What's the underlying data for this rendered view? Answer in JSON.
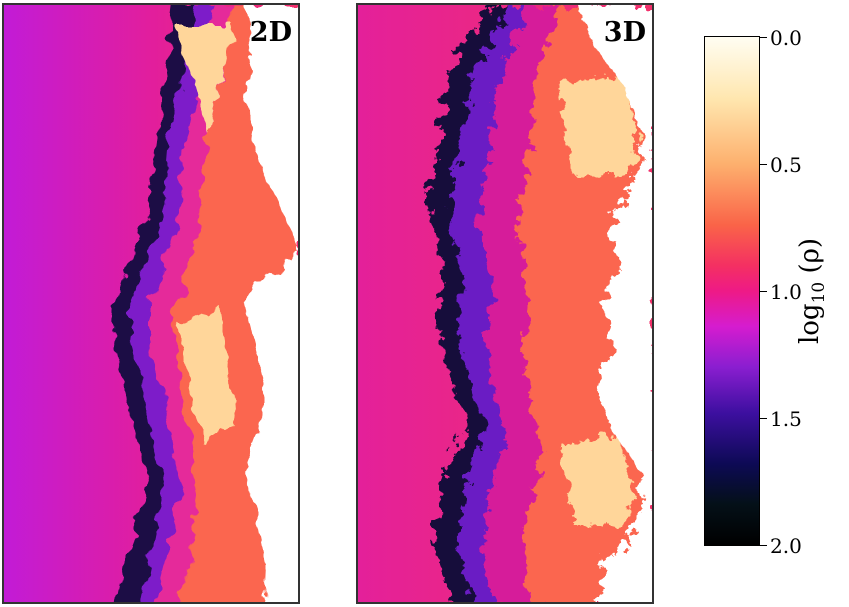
{
  "panels": [
    {
      "label": "2D"
    },
    {
      "label": "3D"
    }
  ],
  "colorbar": {
    "ticks": [
      "0.0",
      "0.5",
      "1.0",
      "1.5",
      "2.0"
    ],
    "label_main": "log",
    "label_sub": "10",
    "label_var": " (ρ)"
  },
  "colors": {
    "low_density": "#c21bd6",
    "mid_density": "#f02a6c",
    "high_density": "#fff5d8"
  }
}
